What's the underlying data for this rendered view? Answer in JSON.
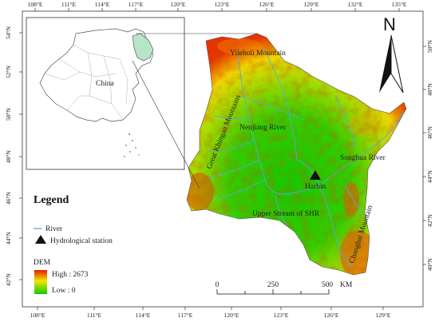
{
  "map": {
    "top_lon_ticks": [
      "108°E",
      "111°E",
      "114°E",
      "117°E",
      "120°E",
      "123°E",
      "126°E",
      "129°E",
      "132°E",
      "135°E"
    ],
    "bottom_lon_ticks": [
      "108°E",
      "111°E",
      "114°E",
      "117°E",
      "120°E",
      "123°E",
      "126°E",
      "129°E"
    ],
    "left_lat_ticks": [
      "54°N",
      "52°N",
      "50°N",
      "48°N",
      "46°N",
      "44°N",
      "42°N"
    ],
    "right_lat_ticks": [
      "50°N",
      "48°N",
      "46°N",
      "44°N",
      "42°N",
      "40°N"
    ],
    "north_label": "N",
    "inset_label": "China",
    "place_labels": {
      "yilehuli": "Yilehuli Mountain",
      "nenjiang": "Nenjiang River",
      "khingan": "Great Khingan Mountains",
      "songhua": "Songhua River",
      "harbin": "Harbin",
      "upper": "Upper Stream of SHR",
      "changbai": "Changbai Mountain"
    },
    "legend": {
      "title": "Legend",
      "river": "River",
      "station": "Hydrological station",
      "dem_title": "DEM",
      "high": "High : 2673",
      "low": "Low : 0"
    },
    "scale": {
      "ticks": [
        "0",
        "250",
        "500"
      ],
      "unit": "KM"
    },
    "colors": {
      "river": "#5aa7e0",
      "dem_high": "#e01e00",
      "dem_mid": "#f3e600",
      "dem_low": "#12c800",
      "inset_highlight": "#b6e5c7"
    }
  }
}
